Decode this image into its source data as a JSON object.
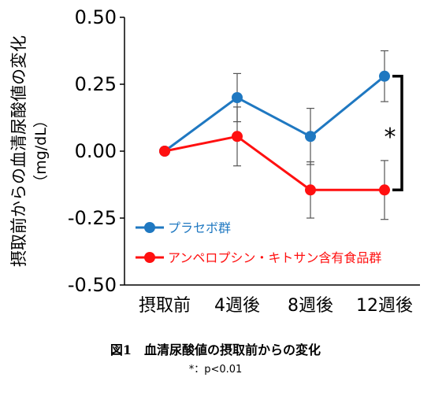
{
  "chart_data": {
    "type": "line",
    "categories": [
      "摂取前",
      "4週後",
      "8週後",
      "12週後"
    ],
    "ylabel": "摂取前からの血清尿酸値の変化",
    "yunit": "（mg/dL）",
    "ylim": [
      -0.5,
      0.5
    ],
    "yticks": [
      "0.50",
      "0.25",
      "0.00",
      "-0.25",
      "-0.50"
    ],
    "ytick_values": [
      0.5,
      0.25,
      0.0,
      -0.25,
      -0.5
    ],
    "grid": false,
    "legend_position": "bottom-left",
    "series": [
      {
        "name": "プラセボ群",
        "color": "#1f78c1",
        "values": [
          0.0,
          0.2,
          0.055,
          0.28
        ],
        "errors": [
          0.0,
          0.09,
          0.105,
          0.095
        ]
      },
      {
        "name": "アンペロプシン・キトサン含有食品群",
        "color": "#ff1010",
        "values": [
          0.0,
          0.055,
          -0.145,
          -0.145
        ],
        "errors": [
          0.0,
          0.11,
          0.105,
          0.11
        ]
      }
    ],
    "significance": {
      "marker": "*",
      "between_index": 3
    }
  },
  "caption": {
    "title": "図1　血清尿酸値の摂取前からの変化",
    "note": "*：p<0.01"
  }
}
